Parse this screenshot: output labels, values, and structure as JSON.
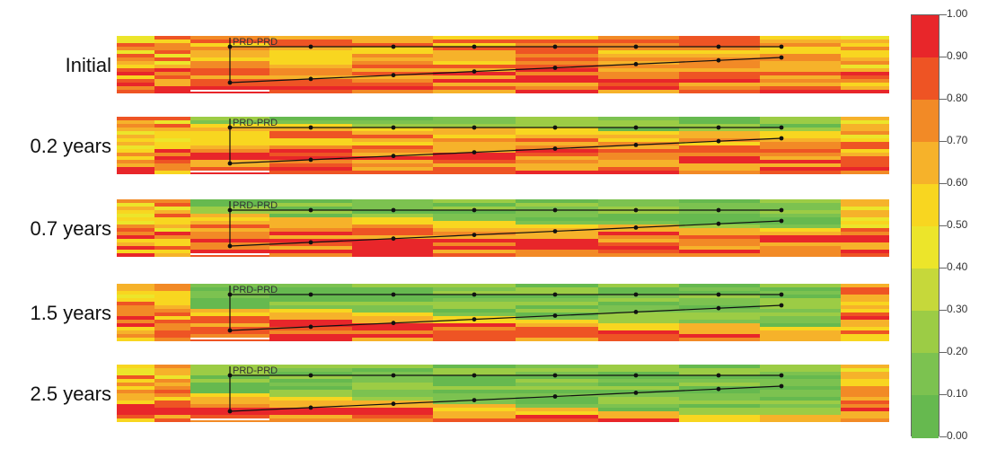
{
  "panels": [
    {
      "label": "Initial",
      "well_label": "PRD-PRD",
      "water_level": 0.0
    },
    {
      "label": "0.2 years",
      "well_label": "PRD-PRD",
      "water_level": 0.25
    },
    {
      "label": "0.7 years",
      "well_label": "PRD-PRD",
      "water_level": 0.5
    },
    {
      "label": "1.5 years",
      "well_label": "PRD-PRD",
      "water_level": 0.75
    },
    {
      "label": "2.5 years",
      "well_label": "PRD-PRD",
      "water_level": 0.9
    }
  ],
  "colorbar": {
    "ticks": [
      "1.00",
      "0.90",
      "0.80",
      "0.70",
      "0.60",
      "0.50",
      "0.40",
      "0.30",
      "0.20",
      "0.10",
      "0.00"
    ],
    "colors": [
      "#e8262a",
      "#ee5424",
      "#f28a26",
      "#f6b22a",
      "#f8d620",
      "#ece52a",
      "#c6d83a",
      "#9ccc45",
      "#7cc250",
      "#66b94f"
    ]
  }
}
